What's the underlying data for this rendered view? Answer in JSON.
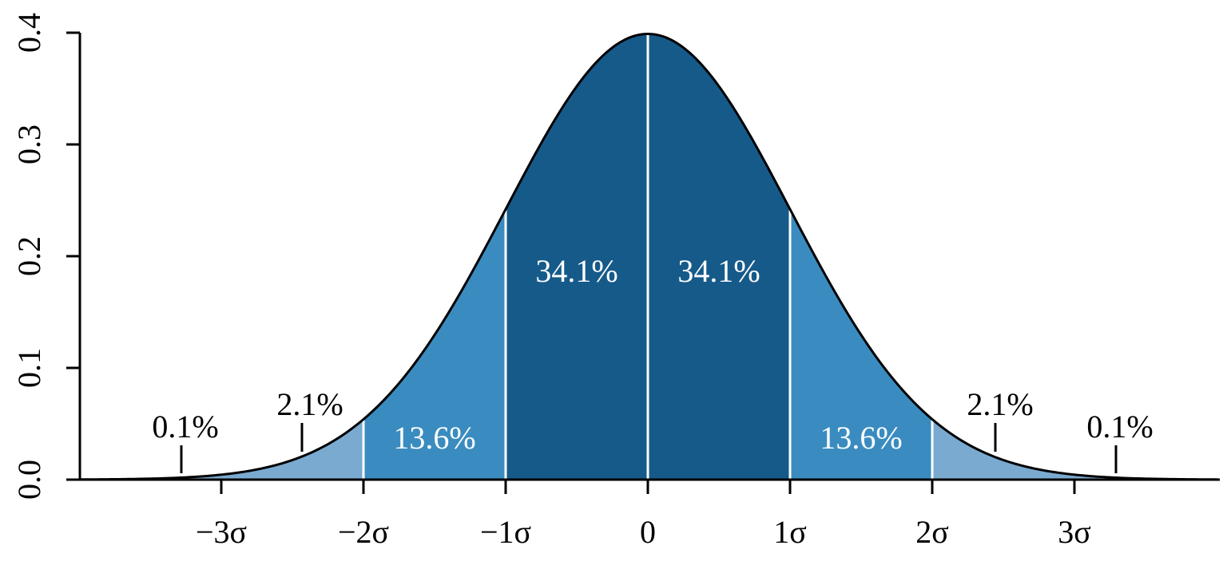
{
  "chart_data": {
    "type": "area",
    "title": "",
    "xlabel": "",
    "ylabel": "",
    "xlim": [
      -3.9,
      4.0
    ],
    "ylim": [
      0.0,
      0.4
    ],
    "grid": false,
    "legend": "none",
    "curve": {
      "distribution": "standard normal density",
      "mean": 0,
      "sd": 1,
      "points": [
        {
          "x": -3.0,
          "y": 0.0044
        },
        {
          "x": -2.5,
          "y": 0.0175
        },
        {
          "x": -2.0,
          "y": 0.054
        },
        {
          "x": -1.5,
          "y": 0.1295
        },
        {
          "x": -1.0,
          "y": 0.242
        },
        {
          "x": -0.5,
          "y": 0.3521
        },
        {
          "x": 0.0,
          "y": 0.3989
        },
        {
          "x": 0.5,
          "y": 0.3521
        },
        {
          "x": 1.0,
          "y": 0.242
        },
        {
          "x": 1.5,
          "y": 0.1295
        },
        {
          "x": 2.0,
          "y": 0.054
        },
        {
          "x": 2.5,
          "y": 0.0175
        },
        {
          "x": 3.0,
          "y": 0.0044
        }
      ]
    },
    "y_ticks": [
      {
        "value": 0.0,
        "label": "0.0"
      },
      {
        "value": 0.1,
        "label": "0.1"
      },
      {
        "value": 0.2,
        "label": "0.2"
      },
      {
        "value": 0.3,
        "label": "0.3"
      },
      {
        "value": 0.4,
        "label": "0.4"
      }
    ],
    "x_ticks": [
      {
        "value": -3,
        "label": "−3σ"
      },
      {
        "value": -2,
        "label": "−2σ"
      },
      {
        "value": -1,
        "label": "−1σ"
      },
      {
        "value": 0,
        "label": "0"
      },
      {
        "value": 1,
        "label": "1σ"
      },
      {
        "value": 2,
        "label": "2σ"
      },
      {
        "value": 3,
        "label": "3σ"
      }
    ],
    "bands": [
      {
        "from": -2,
        "to": -1,
        "percent": 13.6,
        "label": "13.6%",
        "color": "#3a8cc0"
      },
      {
        "from": -1,
        "to": 0,
        "percent": 34.1,
        "label": "34.1%",
        "color": "#165a8a"
      },
      {
        "from": 0,
        "to": 1,
        "percent": 34.1,
        "label": "34.1%",
        "color": "#165a8a"
      },
      {
        "from": 1,
        "to": 2,
        "percent": 13.6,
        "label": "13.6%",
        "color": "#3a8cc0"
      }
    ],
    "outer_bands": [
      {
        "from": -3,
        "to": -2,
        "percent": 2.1,
        "label": "2.1%",
        "color": "#7aaad0"
      },
      {
        "from": 2,
        "to": 3,
        "percent": 2.1,
        "label": "2.1%",
        "color": "#7aaad0"
      }
    ],
    "tail_annotations": [
      {
        "side": "left-outer",
        "percent": 0.1,
        "label": "0.1%"
      },
      {
        "side": "left-inner",
        "percent": 2.1,
        "label": "2.1%"
      },
      {
        "side": "right-inner",
        "percent": 2.1,
        "label": "2.1%"
      },
      {
        "side": "right-outer",
        "percent": 0.1,
        "label": "0.1%"
      }
    ],
    "colors": {
      "curve": "#000000",
      "divider": "#ffffff",
      "band_center": "#165a8a",
      "band_mid": "#3a8cc0",
      "band_outer": "#7aaad0"
    }
  }
}
